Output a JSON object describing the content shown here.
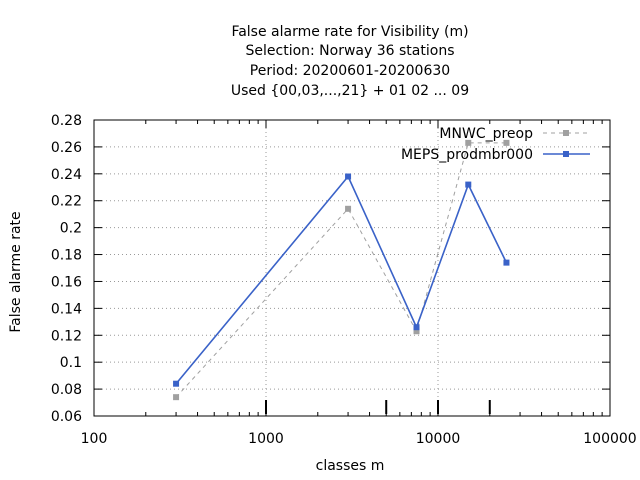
{
  "chart_data": {
    "type": "line",
    "title_lines": [
      "False alarme rate  for Visibility (m)",
      "Selection: Norway     36 stations",
      "Period: 20200601-20200630",
      "Used {00,03,...,21} + 01 02 ... 09"
    ],
    "xlabel": "classes m",
    "ylabel": "False alarme rate",
    "xscale": "log",
    "xlim": [
      100,
      100000
    ],
    "ylim": [
      0.06,
      0.28
    ],
    "x_ticks": [
      "100",
      "1000",
      "10000",
      "100000"
    ],
    "x_tick_values": [
      100,
      1000,
      10000,
      100000
    ],
    "y_ticks": [
      "0.06",
      "0.08",
      "0.1",
      "0.12",
      "0.14",
      "0.16",
      "0.18",
      "0.2",
      "0.22",
      "0.24",
      "0.26",
      "0.28"
    ],
    "y_tick_values": [
      0.06,
      0.08,
      0.1,
      0.12,
      0.14,
      0.16,
      0.18,
      0.2,
      0.22,
      0.24,
      0.26,
      0.28
    ],
    "class_markers": [
      1000,
      5000,
      10000,
      20000
    ],
    "grid": true,
    "legend_position": "top-right",
    "series": [
      {
        "name": "MNWC_preop",
        "color": "#a0a0a0",
        "style": "dashed",
        "x": [
          300,
          3000,
          7500,
          15000,
          25000
        ],
        "y": [
          0.074,
          0.214,
          0.123,
          0.263,
          0.263
        ]
      },
      {
        "name": "MEPS_prodmbr000",
        "color": "#3a62c8",
        "style": "solid",
        "x": [
          300,
          3000,
          7500,
          15000,
          25000
        ],
        "y": [
          0.084,
          0.238,
          0.126,
          0.232,
          0.174
        ]
      }
    ]
  }
}
